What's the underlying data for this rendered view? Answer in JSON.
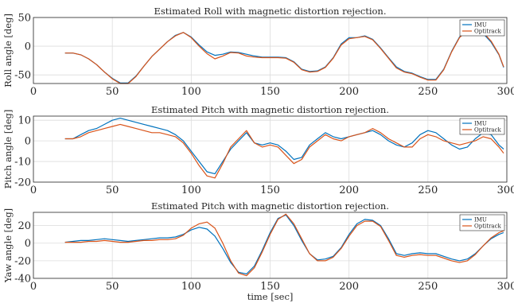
{
  "chart_data": [
    {
      "type": "line",
      "title": "Estimated Roll with magnetic distortion rejection.",
      "xlabel": "",
      "ylabel": "Roll angle [deg]",
      "xlim": [
        0,
        300
      ],
      "ylim": [
        -65,
        50
      ],
      "xticks": [
        "0",
        "50",
        "100",
        "150",
        "200",
        "250",
        "300"
      ],
      "yticks": [
        "-50",
        "0",
        "50"
      ],
      "ytick_values": [
        -50,
        0,
        50
      ],
      "grid": true,
      "legend": "top-right",
      "series": [
        {
          "name": "IMU",
          "color": "#0072BD",
          "x": [
            20,
            25,
            30,
            35,
            40,
            45,
            50,
            55,
            60,
            65,
            70,
            75,
            80,
            85,
            90,
            95,
            100,
            105,
            110,
            115,
            120,
            125,
            130,
            135,
            140,
            145,
            150,
            155,
            160,
            165,
            170,
            175,
            180,
            185,
            190,
            195,
            200,
            205,
            210,
            215,
            220,
            225,
            230,
            235,
            240,
            245,
            250,
            255,
            260,
            265,
            270,
            275,
            280,
            285,
            290,
            295,
            298
          ],
          "y": [
            -12,
            -12,
            -15,
            -22,
            -32,
            -45,
            -56,
            -64,
            -64,
            -52,
            -35,
            -18,
            -5,
            8,
            19,
            24,
            16,
            2,
            -10,
            -16,
            -14,
            -10,
            -11,
            -14,
            -17,
            -19,
            -19,
            -19,
            -20,
            -27,
            -40,
            -44,
            -43,
            -36,
            -20,
            4,
            15,
            15,
            18,
            12,
            -3,
            -20,
            -36,
            -44,
            -47,
            -53,
            -58,
            -58,
            -40,
            -9,
            16,
            28,
            30,
            22,
            7,
            -15,
            -37
          ]
        },
        {
          "name": "Optitrack",
          "color": "#D95319",
          "x": [
            20,
            25,
            30,
            35,
            40,
            45,
            50,
            55,
            60,
            65,
            70,
            75,
            80,
            85,
            90,
            95,
            100,
            105,
            110,
            115,
            120,
            125,
            130,
            135,
            140,
            145,
            150,
            155,
            160,
            165,
            170,
            175,
            180,
            185,
            190,
            195,
            200,
            205,
            210,
            215,
            220,
            225,
            230,
            235,
            240,
            245,
            250,
            255,
            260,
            265,
            270,
            275,
            280,
            285,
            290,
            295,
            298
          ],
          "y": [
            -12,
            -12,
            -15,
            -22,
            -32,
            -45,
            -57,
            -65,
            -65,
            -53,
            -35,
            -18,
            -5,
            8,
            18,
            24,
            15,
            0,
            -13,
            -22,
            -17,
            -11,
            -12,
            -17,
            -19,
            -20,
            -20,
            -20,
            -21,
            -28,
            -41,
            -45,
            -44,
            -37,
            -21,
            2,
            13,
            15,
            17,
            11,
            -4,
            -21,
            -38,
            -45,
            -48,
            -54,
            -59,
            -59,
            -41,
            -10,
            15,
            28,
            32,
            24,
            9,
            -14,
            -36
          ]
        }
      ]
    },
    {
      "type": "line",
      "title": "Estimated Pitch with magnetic distortion rejection.",
      "xlabel": "",
      "ylabel": "Pitch angle [deg]",
      "xlim": [
        0,
        300
      ],
      "ylim": [
        -20,
        12
      ],
      "xticks": [
        "0",
        "50",
        "100",
        "150",
        "200",
        "250",
        "300"
      ],
      "yticks": [
        "-20",
        "-10",
        "0",
        "10"
      ],
      "ytick_values": [
        -20,
        -10,
        0,
        10
      ],
      "grid": true,
      "legend": "top-right",
      "series": [
        {
          "name": "IMU",
          "color": "#0072BD",
          "x": [
            20,
            25,
            30,
            35,
            40,
            45,
            50,
            55,
            60,
            65,
            70,
            75,
            80,
            85,
            90,
            95,
            100,
            105,
            110,
            115,
            120,
            125,
            130,
            135,
            140,
            145,
            150,
            155,
            160,
            165,
            170,
            175,
            180,
            185,
            190,
            195,
            200,
            205,
            210,
            215,
            220,
            225,
            230,
            235,
            240,
            245,
            250,
            255,
            260,
            265,
            270,
            275,
            280,
            285,
            290,
            295,
            298
          ],
          "y": [
            1,
            1,
            3,
            5,
            6,
            8,
            10,
            11,
            10,
            9,
            8,
            7,
            6,
            5,
            3,
            0,
            -5,
            -10,
            -15,
            -16,
            -10,
            -4,
            0,
            4,
            -1,
            -2,
            -1,
            -2,
            -5,
            -9,
            -8,
            -2,
            1,
            4,
            2,
            1,
            2,
            3,
            4,
            5,
            3,
            0,
            -2,
            -3,
            -1,
            3,
            5,
            4,
            1,
            -2,
            -4,
            -3,
            1,
            4,
            3,
            -2,
            -4
          ]
        },
        {
          "name": "Optitrack",
          "color": "#D95319",
          "x": [
            20,
            25,
            30,
            35,
            40,
            45,
            50,
            55,
            60,
            65,
            70,
            75,
            80,
            85,
            90,
            95,
            100,
            105,
            110,
            115,
            120,
            125,
            130,
            135,
            140,
            145,
            150,
            155,
            160,
            165,
            170,
            175,
            180,
            185,
            190,
            195,
            200,
            205,
            210,
            215,
            220,
            225,
            230,
            235,
            240,
            245,
            250,
            255,
            260,
            265,
            270,
            275,
            280,
            285,
            290,
            295,
            298
          ],
          "y": [
            1,
            1,
            2,
            4,
            5,
            6,
            7,
            8,
            7,
            6,
            5,
            4,
            4,
            3,
            2,
            -1,
            -6,
            -12,
            -17,
            -18,
            -11,
            -3,
            1,
            5,
            -1,
            -3,
            -2,
            -3,
            -7,
            -11,
            -9,
            -3,
            0,
            3,
            1,
            0,
            2,
            3,
            4,
            6,
            4,
            1,
            -1,
            -3,
            -3,
            1,
            3,
            2,
            0,
            -1,
            -2,
            -1,
            0,
            2,
            1,
            -3,
            -6
          ]
        }
      ]
    },
    {
      "type": "line",
      "title": "Estimated Pitch with magnetic distortion rejection.",
      "xlabel": "time [sec]",
      "ylabel": "Yaw angle [deg]",
      "xlim": [
        0,
        300
      ],
      "ylim": [
        -40,
        35
      ],
      "xticks": [
        "0",
        "50",
        "100",
        "150",
        "200",
        "250",
        "300"
      ],
      "yticks": [
        "-40",
        "-20",
        "0",
        "20"
      ],
      "ytick_values": [
        -40,
        -20,
        0,
        20
      ],
      "grid": true,
      "legend": "top-right",
      "series": [
        {
          "name": "IMU",
          "color": "#0072BD",
          "x": [
            20,
            25,
            30,
            35,
            40,
            45,
            50,
            55,
            60,
            65,
            70,
            75,
            80,
            85,
            90,
            95,
            100,
            105,
            110,
            115,
            120,
            125,
            130,
            135,
            140,
            145,
            150,
            155,
            160,
            165,
            170,
            175,
            180,
            185,
            190,
            195,
            200,
            205,
            210,
            215,
            220,
            225,
            230,
            235,
            240,
            245,
            250,
            255,
            260,
            265,
            270,
            275,
            280,
            285,
            290,
            295,
            298
          ],
          "y": [
            1,
            2,
            3,
            3,
            4,
            5,
            4,
            3,
            2,
            3,
            4,
            5,
            6,
            6,
            7,
            10,
            15,
            18,
            16,
            8,
            -6,
            -22,
            -33,
            -35,
            -26,
            -8,
            12,
            28,
            32,
            20,
            3,
            -12,
            -19,
            -18,
            -15,
            -5,
            10,
            22,
            27,
            26,
            20,
            5,
            -12,
            -14,
            -12,
            -11,
            -12,
            -12,
            -15,
            -18,
            -20,
            -18,
            -12,
            -3,
            5,
            10,
            12
          ]
        },
        {
          "name": "Optitrack",
          "color": "#D95319",
          "x": [
            20,
            25,
            30,
            35,
            40,
            45,
            50,
            55,
            60,
            65,
            70,
            75,
            80,
            85,
            90,
            95,
            100,
            105,
            110,
            115,
            120,
            125,
            130,
            135,
            140,
            145,
            150,
            155,
            160,
            165,
            170,
            175,
            180,
            185,
            190,
            195,
            200,
            205,
            210,
            215,
            220,
            225,
            230,
            235,
            240,
            245,
            250,
            255,
            260,
            265,
            270,
            275,
            280,
            285,
            290,
            295,
            298
          ],
          "y": [
            1,
            1,
            1,
            2,
            2,
            3,
            2,
            1,
            1,
            2,
            3,
            3,
            4,
            4,
            5,
            9,
            17,
            22,
            24,
            17,
            0,
            -20,
            -34,
            -37,
            -28,
            -10,
            10,
            27,
            33,
            22,
            5,
            -12,
            -20,
            -20,
            -16,
            -6,
            8,
            20,
            25,
            25,
            19,
            3,
            -14,
            -16,
            -14,
            -13,
            -14,
            -14,
            -17,
            -20,
            -22,
            -20,
            -13,
            -3,
            6,
            12,
            14
          ]
        }
      ]
    }
  ]
}
